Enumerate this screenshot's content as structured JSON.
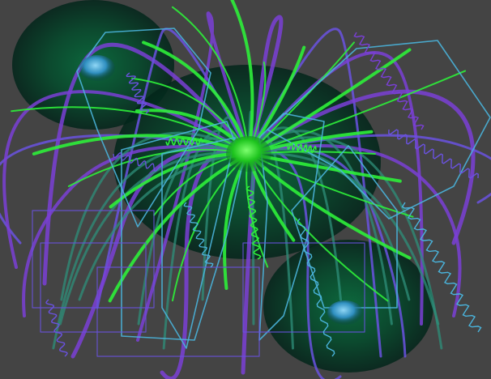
{
  "image": {
    "subject": "abstract-jellyfish-style-generative-art",
    "background_color": "#444444"
  },
  "palette": {
    "purple": "#7a3fd6",
    "violet": "#6a52e0",
    "green": "#2df03a",
    "teal": "#2e8f7a",
    "cyan": "#4ab4dc",
    "blob_dark": "#03261a",
    "blob_mid": "#0a5a35",
    "orb_blue": "#3aa8d8",
    "orb_green": "#25e02a"
  },
  "elements": {
    "blobs": [
      "blob-top-left",
      "blob-center",
      "blob-bottom-right"
    ],
    "orbs": [
      "orb-top-left",
      "orb-center",
      "orb-bottom-right"
    ],
    "stroke_groups": [
      "purple-arcs",
      "green-rays",
      "teal-arcs",
      "cyan-polygons",
      "squiggles"
    ]
  }
}
